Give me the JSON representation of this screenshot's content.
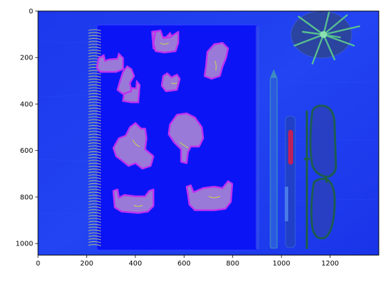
{
  "axes": {
    "x_ticks": [
      {
        "value": 0,
        "label": "0"
      },
      {
        "value": 200,
        "label": "200"
      },
      {
        "value": 400,
        "label": "400"
      },
      {
        "value": 600,
        "label": "600"
      },
      {
        "value": 800,
        "label": "800"
      },
      {
        "value": 1000,
        "label": "1000"
      },
      {
        "value": 1200,
        "label": "1200"
      }
    ],
    "y_ticks": [
      {
        "value": 0,
        "label": "0"
      },
      {
        "value": 200,
        "label": "200"
      },
      {
        "value": 400,
        "label": "400"
      },
      {
        "value": 600,
        "label": "600"
      },
      {
        "value": 800,
        "label": "800"
      },
      {
        "value": 1000,
        "label": "1000"
      }
    ],
    "x_range": [
      0,
      1400
    ],
    "y_range": [
      1050,
      0
    ]
  },
  "image": {
    "colors": {
      "background": "#1f3cf0",
      "notebook": "#0a14f5",
      "blob": "#9a7ad8",
      "blob_edge": "#c030f0",
      "spiral": "#a8b090",
      "pencil": "#2a5ae0",
      "pen_body": "#2040c8",
      "pen_grip": "#c0205a",
      "glasses_frame": "#1d6040",
      "plant_leaf": "#58c090",
      "plant_pot": "#2a44a0"
    }
  }
}
